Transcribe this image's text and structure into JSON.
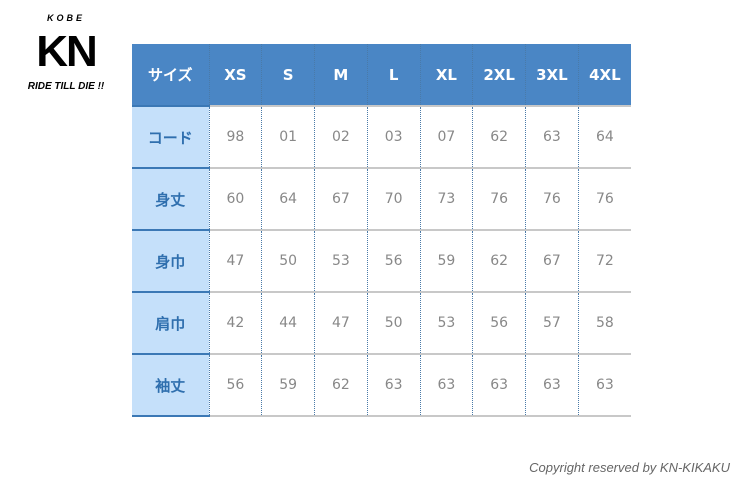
{
  "logo": {
    "top": "KOBE",
    "main": "KN",
    "tagline": "RIDE TILL DIE !!"
  },
  "table": {
    "header": [
      "サイズ",
      "XS",
      "S",
      "M",
      "L",
      "XL",
      "2XL",
      "3XL",
      "4XL"
    ],
    "rows": [
      {
        "label": "コード",
        "values": [
          "98",
          "01",
          "02",
          "03",
          "07",
          "62",
          "63",
          "64"
        ]
      },
      {
        "label": "身丈",
        "values": [
          "60",
          "64",
          "67",
          "70",
          "73",
          "76",
          "76",
          "76"
        ]
      },
      {
        "label": "身巾",
        "values": [
          "47",
          "50",
          "53",
          "56",
          "59",
          "62",
          "67",
          "72"
        ]
      },
      {
        "label": "肩巾",
        "values": [
          "42",
          "44",
          "47",
          "50",
          "53",
          "56",
          "57",
          "58"
        ]
      },
      {
        "label": "袖丈",
        "values": [
          "56",
          "59",
          "62",
          "63",
          "63",
          "63",
          "63",
          "63"
        ]
      }
    ]
  },
  "copyright": "Copyright reserved by KN-KIKAKU",
  "colors": {
    "header_bg": "#4a86c5",
    "row_header_bg": "#c5e0fa",
    "row_header_text": "#2f6fae"
  }
}
